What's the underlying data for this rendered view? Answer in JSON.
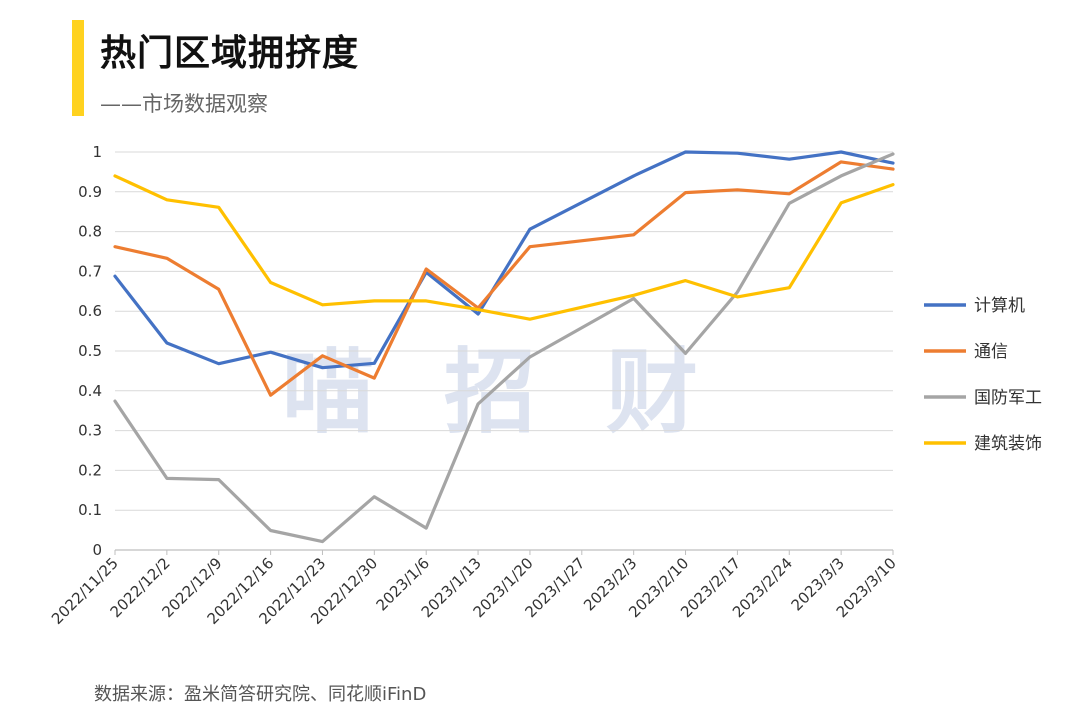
{
  "header": {
    "title": "热门区域拥挤度",
    "subtitle": "——市场数据观察"
  },
  "watermark": "喵招财",
  "footer": {
    "source": "数据来源：盈米简答研究院、同花顺iFinD"
  },
  "colors": {
    "accent": "#FFD21F",
    "grid": "#d9d9d9",
    "axis": "#bfbfbf"
  },
  "chart_data": {
    "type": "line",
    "title": "",
    "xlabel": "",
    "ylabel": "",
    "ylim": [
      0,
      1
    ],
    "yticks": [
      "0",
      "0.1",
      "0.2",
      "0.3",
      "0.4",
      "0.5",
      "0.6",
      "0.7",
      "0.8",
      "0.9",
      "1"
    ],
    "grid": true,
    "legend_position": "right",
    "x": [
      "2022/11/25",
      "2022/12/2",
      "2022/12/9",
      "2022/12/16",
      "2022/12/23",
      "2022/12/30",
      "2023/1/6",
      "2023/1/13",
      "2023/1/20",
      "2023/1/27",
      "2023/2/3",
      "2023/2/10",
      "2023/2/17",
      "2023/2/24",
      "2023/3/3",
      "2023/3/10"
    ],
    "series": [
      {
        "name": "计算机",
        "color": "#4472C4",
        "values": [
          0.688,
          0.52,
          0.468,
          0.497,
          0.458,
          0.469,
          0.698,
          0.593,
          0.806,
          null,
          0.94,
          1.0,
          0.997,
          0.982,
          1.0,
          0.972
        ]
      },
      {
        "name": "通信",
        "color": "#ED7D31",
        "values": [
          0.762,
          0.733,
          0.655,
          0.389,
          0.488,
          0.432,
          0.706,
          0.608,
          0.762,
          null,
          0.792,
          0.898,
          0.905,
          0.895,
          0.975,
          0.957
        ]
      },
      {
        "name": "国防军工",
        "color": "#A5A5A5",
        "values": [
          0.374,
          0.18,
          0.177,
          0.049,
          0.021,
          0.134,
          0.055,
          0.367,
          0.485,
          null,
          0.632,
          0.494,
          0.648,
          0.871,
          0.94,
          0.995
        ]
      },
      {
        "name": "建筑装饰",
        "color": "#FFC000",
        "values": [
          0.94,
          0.88,
          0.861,
          0.672,
          0.616,
          0.626,
          0.626,
          0.604,
          0.58,
          null,
          0.64,
          0.677,
          0.636,
          0.659,
          0.872,
          0.918
        ]
      }
    ]
  }
}
